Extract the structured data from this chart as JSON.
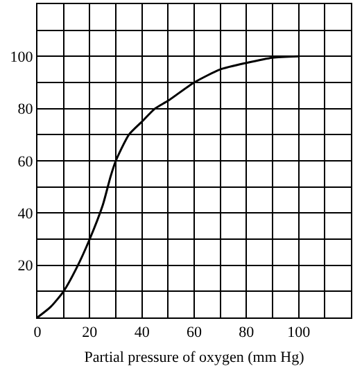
{
  "chart_data": {
    "type": "line",
    "xlabel": "Partial pressure of oxygen (mm Hg)",
    "x": [
      0,
      5,
      10,
      15,
      20,
      25,
      28,
      30,
      35,
      40,
      45,
      50,
      60,
      70,
      80,
      90,
      100
    ],
    "series": [
      {
        "color": "#000000",
        "values": [
          0,
          4,
          10,
          19,
          30,
          43,
          54,
          60,
          70,
          75,
          80,
          83,
          90,
          95,
          97.5,
          99.5,
          100
        ]
      }
    ],
    "xlim": [
      0,
      120
    ],
    "ylim": [
      0,
      120
    ],
    "xticks": [
      0,
      {
        "value": 10,
        "label": null
      },
      20,
      {
        "value": 30,
        "label": null
      },
      40,
      {
        "value": 50,
        "label": null
      },
      60,
      {
        "value": 70,
        "label": null
      },
      80,
      {
        "value": 90,
        "label": null
      },
      100,
      {
        "value": 110,
        "label": null
      },
      {
        "value": 120,
        "label": null
      }
    ],
    "yticks": [
      {
        "value": 0,
        "label": null
      },
      {
        "value": 10,
        "label": null
      },
      20,
      {
        "value": 30,
        "label": null
      },
      40,
      {
        "value": 50,
        "label": null
      },
      60,
      {
        "value": 70,
        "label": null
      },
      80,
      {
        "value": 90,
        "label": null
      },
      100,
      {
        "value": 110,
        "label": null
      },
      {
        "value": 120,
        "label": null
      }
    ],
    "grid": true,
    "marker": "none",
    "line_style": "solid"
  }
}
